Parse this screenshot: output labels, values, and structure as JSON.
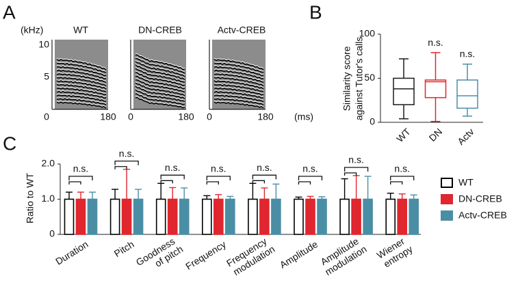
{
  "panel_labels": [
    "A",
    "B",
    "C"
  ],
  "spectrograms": {
    "y_unit": "(kHz)",
    "x_unit": "(ms)",
    "titles": [
      "WT",
      "DN-CREB",
      "Actv-CREB"
    ],
    "xlim": [
      0,
      180
    ],
    "xticks": [
      0,
      180
    ],
    "ylim": [
      0,
      10
    ],
    "yticks": [
      5,
      10
    ]
  },
  "chart_data": [
    {
      "type": "box",
      "ylabel": [
        "Similarity score",
        "against Tutor's calls"
      ],
      "categories": [
        "WT",
        "DN",
        "Actv"
      ],
      "colors": [
        "#1a1a1a",
        "#e0262e",
        "#4a8ea6"
      ],
      "boxes": [
        {
          "min": 4,
          "q1": 20,
          "median": 38,
          "q3": 50,
          "max": 72
        },
        {
          "min": 1,
          "q1": 28,
          "median": 46,
          "q3": 48,
          "max": 79
        },
        {
          "min": 7,
          "q1": 16,
          "median": 30,
          "q3": 48,
          "max": 66
        }
      ],
      "annotations": [
        null,
        "n.s.",
        "n.s."
      ],
      "ylim": [
        0,
        100
      ],
      "yticks": [
        0,
        50,
        100
      ]
    },
    {
      "type": "bar",
      "ylabel": "Ratio to WT",
      "categories": [
        "Duration",
        "Pitch",
        "Goodness of pitch",
        "Frequency",
        "Frequency modulation",
        "Amplitude",
        "Amplitude modulation",
        "Wiener entropy"
      ],
      "series": [
        {
          "name": "WT",
          "color": "#000000",
          "fill": "#ffffff",
          "values": [
            1,
            1,
            1,
            1,
            1,
            1,
            1,
            1
          ],
          "errors": [
            0.2,
            0.28,
            0.45,
            0.1,
            0.45,
            0.06,
            0.58,
            0.17
          ]
        },
        {
          "name": "DN-CREB",
          "color": "#e0262e",
          "fill": "#e0262e",
          "values": [
            1,
            1,
            1,
            1,
            1,
            1,
            1,
            1
          ],
          "errors": [
            0.2,
            0.85,
            0.33,
            0.13,
            0.32,
            0.08,
            0.67,
            0.15
          ]
        },
        {
          "name": "Actv-CREB",
          "color": "#4a8ea6",
          "fill": "#4a8ea6",
          "values": [
            1,
            1,
            1,
            1,
            1,
            1,
            1,
            1
          ],
          "errors": [
            0.2,
            0.28,
            0.32,
            0.08,
            0.43,
            0.07,
            0.65,
            0.12
          ]
        }
      ],
      "annotations": [
        "n.s.",
        "n.s.",
        "n.s.",
        "n.s.",
        "n.s.",
        "n.s.",
        "n.s.",
        "n.s."
      ],
      "ylim": [
        0,
        2
      ],
      "yticks": [
        0,
        {
          "value": 1,
          "label": "1.0"
        },
        {
          "value": 2,
          "label": "2.0"
        }
      ],
      "legend": "right"
    }
  ]
}
